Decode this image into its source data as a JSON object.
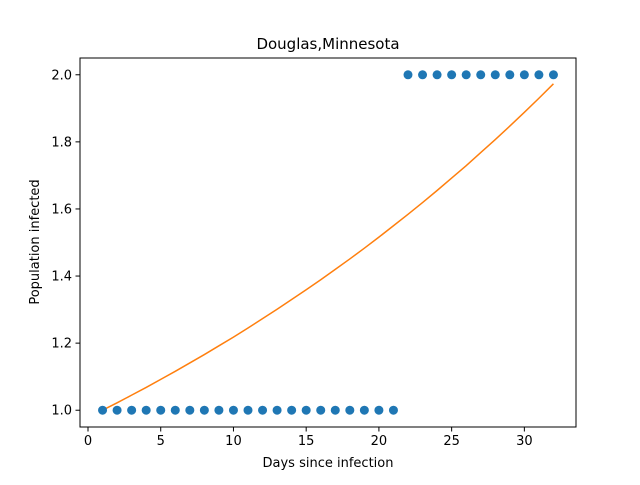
{
  "chart_data": {
    "type": "scatter",
    "title": "Douglas,Minnesota",
    "xlabel": "Days since infection",
    "ylabel": "Population infected",
    "xlim": [
      -0.55,
      33.55
    ],
    "ylim": [
      0.95,
      2.05
    ],
    "xticks": [
      0,
      5,
      10,
      15,
      20,
      25,
      30
    ],
    "yticks": [
      1.0,
      1.2,
      1.4,
      1.6,
      1.8,
      2.0
    ],
    "xtick_labels": [
      "0",
      "5",
      "10",
      "15",
      "20",
      "25",
      "30"
    ],
    "ytick_labels": [
      "1.0",
      "1.2",
      "1.4",
      "1.6",
      "1.8",
      "2.0"
    ],
    "grid": false,
    "series": [
      {
        "kind": "scatter",
        "color": "#1f77b4",
        "x": [
          1,
          2,
          3,
          4,
          5,
          6,
          7,
          8,
          9,
          10,
          11,
          12,
          13,
          14,
          15,
          16,
          17,
          18,
          19,
          20,
          21,
          22,
          23,
          24,
          25,
          26,
          27,
          28,
          29,
          30,
          31,
          32
        ],
        "y": [
          1,
          1,
          1,
          1,
          1,
          1,
          1,
          1,
          1,
          1,
          1,
          1,
          1,
          1,
          1,
          1,
          1,
          1,
          1,
          1,
          1,
          2,
          2,
          2,
          2,
          2,
          2,
          2,
          2,
          2,
          2,
          2
        ]
      },
      {
        "kind": "line",
        "color": "#ff7f0e",
        "x": [
          1,
          2,
          3,
          4,
          5,
          6,
          7,
          8,
          9,
          10,
          11,
          12,
          13,
          14,
          15,
          16,
          17,
          18,
          19,
          20,
          21,
          22,
          23,
          24,
          25,
          26,
          27,
          28,
          29,
          30,
          31,
          32
        ],
        "y": [
          1.0,
          1.022,
          1.045,
          1.068,
          1.092,
          1.116,
          1.141,
          1.166,
          1.192,
          1.218,
          1.245,
          1.273,
          1.301,
          1.33,
          1.359,
          1.389,
          1.42,
          1.451,
          1.483,
          1.516,
          1.55,
          1.584,
          1.619,
          1.655,
          1.692,
          1.729,
          1.768,
          1.807,
          1.847,
          1.888,
          1.93,
          1.973
        ]
      }
    ]
  }
}
